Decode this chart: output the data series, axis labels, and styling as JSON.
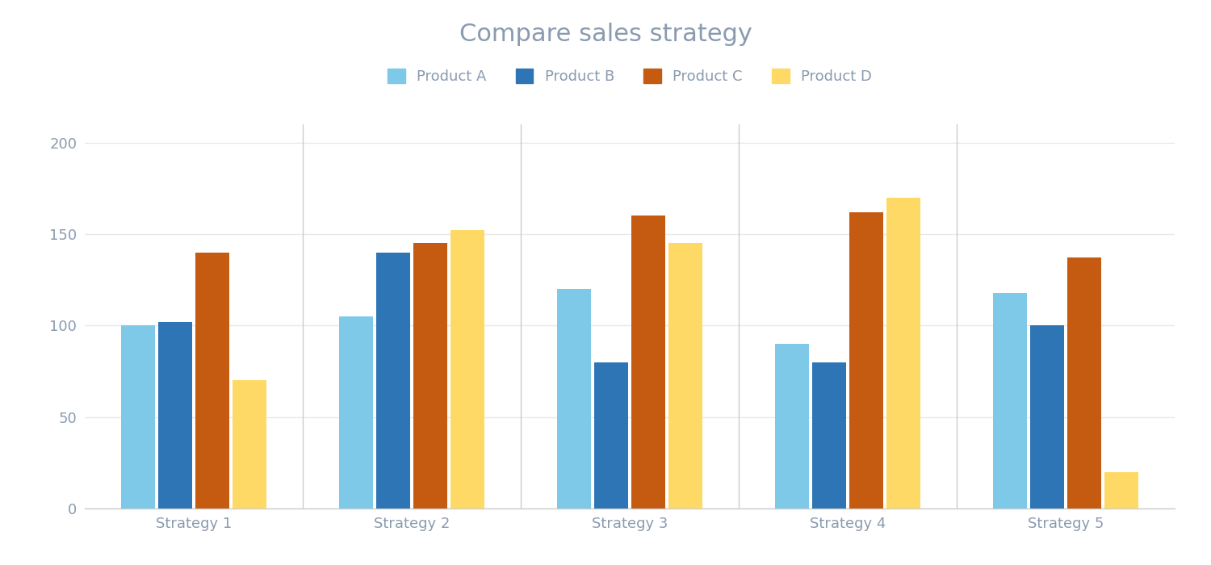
{
  "title": "Compare sales strategy",
  "categories": [
    "Strategy 1",
    "Strategy 2",
    "Strategy 3",
    "Strategy 4",
    "Strategy 5"
  ],
  "products": [
    "Product A",
    "Product B",
    "Product C",
    "Product D"
  ],
  "values": {
    "Product A": [
      100,
      105,
      120,
      90,
      118
    ],
    "Product B": [
      102,
      140,
      80,
      80,
      100
    ],
    "Product C": [
      140,
      145,
      160,
      162,
      137
    ],
    "Product D": [
      70,
      152,
      145,
      170,
      20
    ]
  },
  "colors": {
    "Product A": "#7EC8E8",
    "Product B": "#2E75B6",
    "Product C": "#C55A11",
    "Product D": "#FFD966"
  },
  "ylim": [
    0,
    210
  ],
  "yticks": [
    0,
    50,
    100,
    150,
    200
  ],
  "bar_width": 0.17,
  "title_color": "#8A9BB0",
  "title_fontsize": 22,
  "legend_fontsize": 13,
  "tick_fontsize": 13,
  "background_color": "#FFFFFF",
  "axes_background": "#FFFFFF",
  "grid_color": "#E8E8E8",
  "spine_color": "#CCCCCC"
}
